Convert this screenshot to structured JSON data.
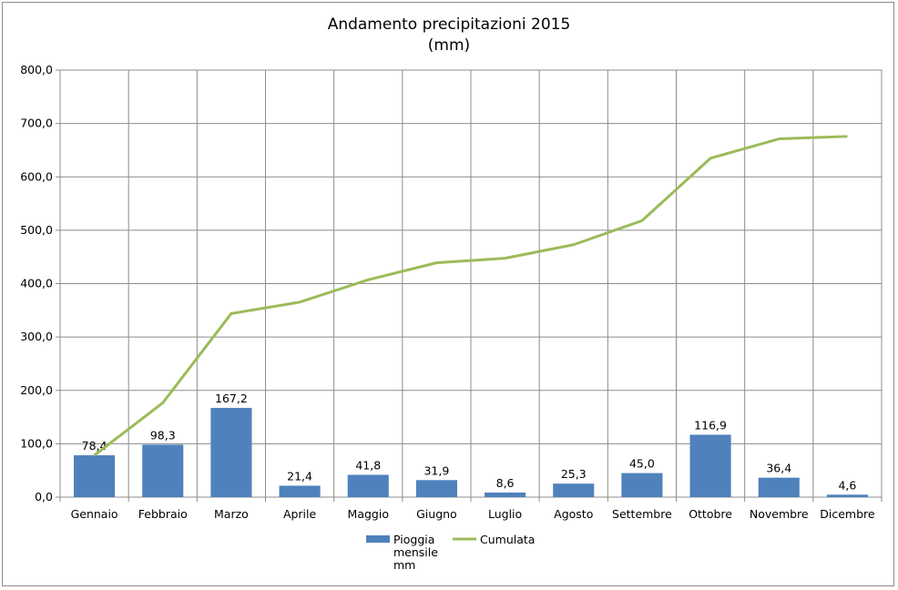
{
  "chart_data": {
    "type": "bar",
    "title_line1": "Andamento precipitazioni 2015",
    "title_line2": "(mm)",
    "categories": [
      "Gennaio",
      "Febbraio",
      "Marzo",
      "Aprile",
      "Maggio",
      "Giugno",
      "Luglio",
      "Agosto",
      "Settembre",
      "Ottobre",
      "Novembre",
      "Dicembre"
    ],
    "series": [
      {
        "name": "Pioggia mensile mm",
        "name_lines": [
          "Pioggia",
          "mensile",
          "mm"
        ],
        "kind": "bar",
        "color": "#4f81bd",
        "values": [
          78.4,
          98.3,
          167.2,
          21.4,
          41.8,
          31.9,
          8.6,
          25.3,
          45.0,
          116.9,
          36.4,
          4.6
        ],
        "labels": [
          "78,4",
          "98,3",
          "167,2",
          "21,4",
          "41,8",
          "31,9",
          "8,6",
          "25,3",
          "45,0",
          "116,9",
          "36,4",
          "4,6"
        ]
      },
      {
        "name": "Cumulata",
        "kind": "line",
        "color": "#9bbb59",
        "values": [
          78.4,
          176.7,
          343.9,
          365.3,
          407.1,
          439.0,
          447.6,
          472.9,
          517.9,
          634.8,
          671.2,
          675.8
        ]
      }
    ],
    "ylim": [
      0,
      800
    ],
    "yticks": [
      0,
      100,
      200,
      300,
      400,
      500,
      600,
      700,
      800
    ],
    "ytick_labels": [
      "0,0",
      "100,0",
      "200,0",
      "300,0",
      "400,0",
      "500,0",
      "600,0",
      "700,0",
      "800,0"
    ],
    "grid": true,
    "legend_position": "bottom"
  }
}
